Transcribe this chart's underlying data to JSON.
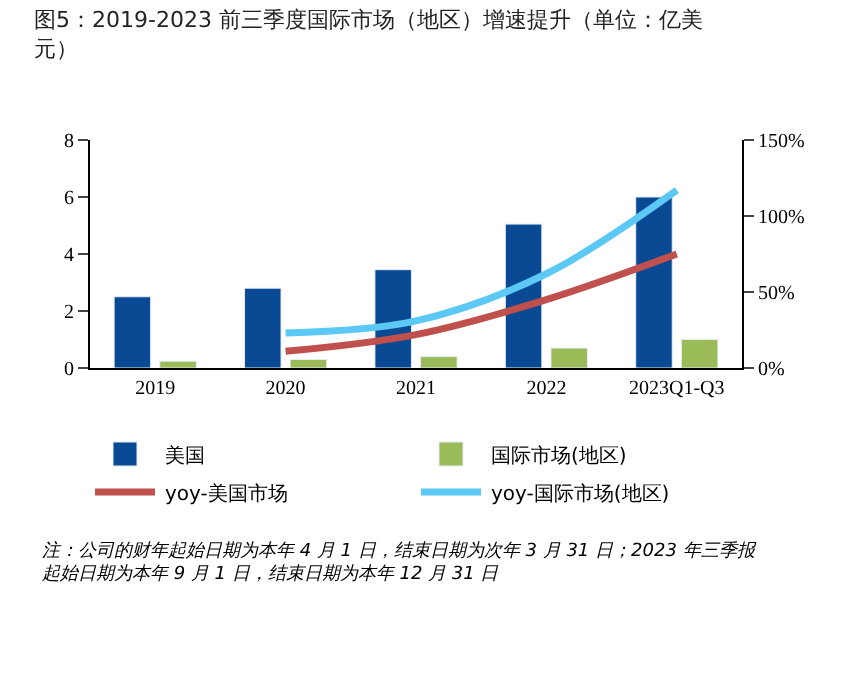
{
  "chart_data": {
    "type": "bar",
    "title": "图5：2019-2023 前三季度国际市场（地区）增速提升（单位：亿美元）",
    "categories": [
      "2019",
      "2020",
      "2021",
      "2022",
      "2023Q1-Q3"
    ],
    "series": [
      {
        "name": "美国",
        "color": "#0a4a94",
        "values": [
          2.5,
          2.8,
          3.45,
          5.05,
          6.0
        ]
      },
      {
        "name": "国际市场(地区)",
        "color": "#9bbb59",
        "values": [
          0.24,
          0.3,
          0.4,
          0.7,
          1.0
        ]
      },
      {
        "name": "yoy-美国市场",
        "type": "line",
        "axis": "y2",
        "color": "#c0504d",
        "values": [
          null,
          11,
          22,
          45,
          75
        ]
      },
      {
        "name": "yoy-国际市场(地区)",
        "type": "line",
        "axis": "y2",
        "color": "#5bc8f5",
        "values": [
          null,
          23,
          31,
          62,
          117
        ]
      }
    ],
    "ylim": [
      0,
      8
    ],
    "yticks": [
      0,
      2,
      4,
      6,
      8
    ],
    "y2lim": [
      0,
      150
    ],
    "y2ticks": [
      {
        "value": 0,
        "label": "0%"
      },
      {
        "value": 50,
        "label": "50%"
      },
      {
        "value": 100,
        "label": "100%"
      },
      {
        "value": 150,
        "label": "150%"
      }
    ],
    "legend": "bottom",
    "annotations": [
      "注：公司的财年起始日期为本年 4 月 1 日，结束日期为次年 3 月 31 日；2023 年三季报起始日期为本年 9 月 1 日，结束日期为本年 12 月 31 日"
    ]
  }
}
